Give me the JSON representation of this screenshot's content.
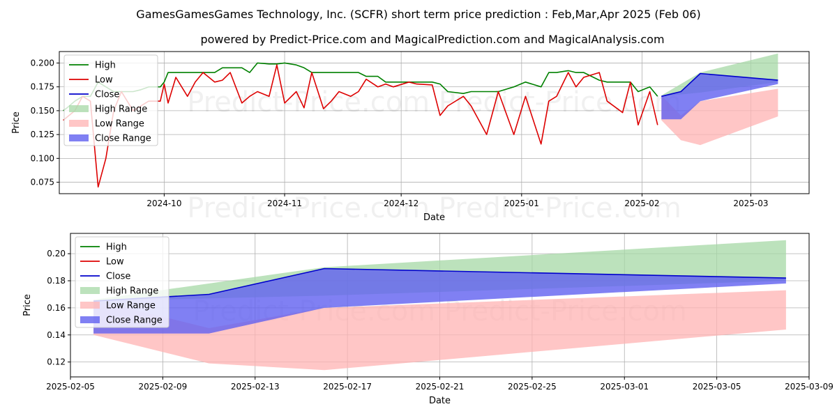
{
  "title": "GamesGamesGames Technology, Inc. (SCFR) short term price prediction : Feb,Mar,Apr 2025 (Feb 06)",
  "subtitle": "powered by Predict-Price.com and MagicalPrediction.com and MagicalAnalysis.com",
  "watermark": "Predict-Price.com",
  "colors": {
    "high": "#008000",
    "low": "#dd0000",
    "close": "#0000cc",
    "high_range": "#a6d8a6",
    "low_range": "#ffb3b3",
    "close_range": "#6060f0"
  },
  "chart_data": [
    {
      "type": "line",
      "xlabel": "Date",
      "ylabel": "Price",
      "x_axis": "date",
      "xlim": [
        "2024-09-04",
        "2025-03-16"
      ],
      "ylim": [
        0.063,
        0.212
      ],
      "x_ticks": [
        {
          "date": "2024-10-01",
          "label": "2024-10"
        },
        {
          "date": "2024-11-01",
          "label": "2024-11"
        },
        {
          "date": "2024-12-01",
          "label": "2024-12"
        },
        {
          "date": "2025-01-01",
          "label": "2025-01"
        },
        {
          "date": "2025-02-01",
          "label": "2025-02"
        },
        {
          "date": "2025-03-01",
          "label": "2025-03"
        }
      ],
      "y_ticks": [
        {
          "value": 0.075,
          "label": "0.075"
        },
        {
          "value": 0.1,
          "label": "0.100"
        },
        {
          "value": 0.125,
          "label": "0.125"
        },
        {
          "value": 0.15,
          "label": "0.150"
        },
        {
          "value": 0.175,
          "label": "0.175"
        },
        {
          "value": 0.2,
          "label": "0.200"
        }
      ],
      "grid": true,
      "legend": "upper-left",
      "legend_entries": [
        "High",
        "Low",
        "Close",
        "High Range",
        "Low Range",
        "Close Range"
      ],
      "series": [
        {
          "name": "High",
          "color": "#008000",
          "x": [
            "2024-09-05",
            "2024-09-06",
            "2024-09-08",
            "2024-09-10",
            "2024-09-12",
            "2024-09-14",
            "2024-09-16",
            "2024-09-18",
            "2024-09-20",
            "2024-09-23",
            "2024-09-25",
            "2024-09-27",
            "2024-09-30",
            "2024-10-01",
            "2024-10-02",
            "2024-10-04",
            "2024-10-07",
            "2024-10-09",
            "2024-10-11",
            "2024-10-14",
            "2024-10-16",
            "2024-10-18",
            "2024-10-21",
            "2024-10-23",
            "2024-10-25",
            "2024-10-28",
            "2024-10-30",
            "2024-11-01",
            "2024-11-04",
            "2024-11-06",
            "2024-11-08",
            "2024-11-11",
            "2024-11-13",
            "2024-11-15",
            "2024-11-18",
            "2024-11-20",
            "2024-11-22",
            "2024-11-25",
            "2024-11-27",
            "2024-11-29",
            "2024-12-03",
            "2024-12-05",
            "2024-12-09",
            "2024-12-11",
            "2024-12-13",
            "2024-12-17",
            "2024-12-19",
            "2024-12-23",
            "2024-12-26",
            "2024-12-30",
            "2025-01-02",
            "2025-01-06",
            "2025-01-08",
            "2025-01-10",
            "2025-01-13",
            "2025-01-15",
            "2025-01-17",
            "2025-01-21",
            "2025-01-23",
            "2025-01-27",
            "2025-01-29",
            "2025-01-31",
            "2025-02-03",
            "2025-02-05"
          ],
          "values": [
            0.15,
            0.153,
            0.16,
            0.165,
            0.165,
            0.18,
            0.175,
            0.17,
            0.17,
            0.17,
            0.172,
            0.175,
            0.175,
            0.18,
            0.19,
            0.19,
            0.19,
            0.19,
            0.19,
            0.19,
            0.195,
            0.195,
            0.195,
            0.19,
            0.2,
            0.199,
            0.199,
            0.2,
            0.198,
            0.195,
            0.19,
            0.19,
            0.19,
            0.19,
            0.19,
            0.19,
            0.186,
            0.186,
            0.18,
            0.18,
            0.18,
            0.18,
            0.18,
            0.178,
            0.17,
            0.168,
            0.17,
            0.17,
            0.17,
            0.175,
            0.18,
            0.175,
            0.19,
            0.19,
            0.192,
            0.19,
            0.19,
            0.182,
            0.18,
            0.18,
            0.18,
            0.17,
            0.175,
            0.165
          ]
        },
        {
          "name": "Low",
          "color": "#dd0000",
          "x": [
            "2024-09-05",
            "2024-09-08",
            "2024-09-10",
            "2024-09-12",
            "2024-09-14",
            "2024-09-16",
            "2024-09-18",
            "2024-09-20",
            "2024-09-23",
            "2024-09-25",
            "2024-09-27",
            "2024-09-30",
            "2024-10-01",
            "2024-10-02",
            "2024-10-04",
            "2024-10-07",
            "2024-10-09",
            "2024-10-11",
            "2024-10-14",
            "2024-10-16",
            "2024-10-18",
            "2024-10-21",
            "2024-10-23",
            "2024-10-25",
            "2024-10-28",
            "2024-10-30",
            "2024-11-01",
            "2024-11-04",
            "2024-11-06",
            "2024-11-08",
            "2024-11-11",
            "2024-11-13",
            "2024-11-15",
            "2024-11-18",
            "2024-11-20",
            "2024-11-22",
            "2024-11-25",
            "2024-11-27",
            "2024-11-29",
            "2024-12-03",
            "2024-12-05",
            "2024-12-09",
            "2024-12-11",
            "2024-12-13",
            "2024-12-17",
            "2024-12-19",
            "2024-12-23",
            "2024-12-26",
            "2024-12-30",
            "2025-01-02",
            "2025-01-06",
            "2025-01-08",
            "2025-01-10",
            "2025-01-13",
            "2025-01-15",
            "2025-01-17",
            "2025-01-21",
            "2025-01-23",
            "2025-01-27",
            "2025-01-29",
            "2025-01-31",
            "2025-02-03",
            "2025-02-05"
          ],
          "values": [
            0.14,
            0.15,
            0.165,
            0.16,
            0.07,
            0.1,
            0.15,
            0.17,
            0.15,
            0.155,
            0.16,
            0.16,
            0.178,
            0.158,
            0.185,
            0.165,
            0.18,
            0.19,
            0.18,
            0.182,
            0.19,
            0.158,
            0.165,
            0.17,
            0.165,
            0.198,
            0.158,
            0.17,
            0.153,
            0.19,
            0.152,
            0.16,
            0.17,
            0.165,
            0.17,
            0.183,
            0.175,
            0.178,
            0.175,
            0.18,
            0.178,
            0.177,
            0.145,
            0.155,
            0.165,
            0.155,
            0.125,
            0.17,
            0.125,
            0.165,
            0.115,
            0.16,
            0.165,
            0.19,
            0.175,
            0.185,
            0.19,
            0.16,
            0.148,
            0.18,
            0.135,
            0.17,
            0.135
          ]
        },
        {
          "name": "Close",
          "color": "#0000cc",
          "x": [
            "2025-02-06",
            "2025-02-09",
            "2025-02-11",
            "2025-02-16",
            "2025-03-08"
          ],
          "values": [
            0.165,
            0.168,
            0.17,
            0.189,
            0.182
          ]
        }
      ],
      "ranges": [
        {
          "name": "High Range",
          "x": [
            "2025-02-06",
            "2025-02-16",
            "2025-03-08"
          ],
          "upper": [
            0.166,
            0.19,
            0.21
          ],
          "lower": [
            0.165,
            0.169,
            0.18
          ]
        },
        {
          "name": "Low Range",
          "x": [
            "2025-02-06",
            "2025-02-11",
            "2025-02-16",
            "2025-03-08"
          ],
          "upper": [
            0.166,
            0.145,
            0.16,
            0.173
          ],
          "lower": [
            0.14,
            0.119,
            0.114,
            0.144
          ]
        },
        {
          "name": "Close Range",
          "x": [
            "2025-02-06",
            "2025-02-11",
            "2025-02-16",
            "2025-03-08"
          ],
          "upper": [
            0.165,
            0.17,
            0.189,
            0.182
          ],
          "lower": [
            0.141,
            0.141,
            0.16,
            0.178
          ]
        }
      ]
    },
    {
      "type": "line",
      "xlabel": "Date",
      "ylabel": "Price",
      "x_axis": "date",
      "xlim": [
        "2025-02-05",
        "2025-03-09"
      ],
      "ylim": [
        0.109,
        0.215
      ],
      "x_ticks": [
        {
          "date": "2025-02-05",
          "label": "2025-02-05"
        },
        {
          "date": "2025-02-09",
          "label": "2025-02-09"
        },
        {
          "date": "2025-02-13",
          "label": "2025-02-13"
        },
        {
          "date": "2025-02-17",
          "label": "2025-02-17"
        },
        {
          "date": "2025-02-21",
          "label": "2025-02-21"
        },
        {
          "date": "2025-02-25",
          "label": "2025-02-25"
        },
        {
          "date": "2025-03-01",
          "label": "2025-03-01"
        },
        {
          "date": "2025-03-05",
          "label": "2025-03-05"
        },
        {
          "date": "2025-03-09",
          "label": "2025-03-09"
        }
      ],
      "y_ticks": [
        {
          "value": 0.12,
          "label": "0.12"
        },
        {
          "value": 0.14,
          "label": "0.14"
        },
        {
          "value": 0.16,
          "label": "0.16"
        },
        {
          "value": 0.18,
          "label": "0.18"
        },
        {
          "value": 0.2,
          "label": "0.20"
        }
      ],
      "grid": true,
      "legend": "upper-left",
      "legend_entries": [
        "High",
        "Low",
        "Close",
        "High Range",
        "Low Range",
        "Close Range"
      ],
      "series": [
        {
          "name": "Close",
          "color": "#0000cc",
          "x": [
            "2025-02-06",
            "2025-02-09",
            "2025-02-11",
            "2025-02-16",
            "2025-03-08"
          ],
          "values": [
            0.165,
            0.168,
            0.17,
            0.189,
            0.182
          ]
        }
      ],
      "ranges": [
        {
          "name": "High Range",
          "x": [
            "2025-02-06",
            "2025-02-16",
            "2025-03-08"
          ],
          "upper": [
            0.166,
            0.19,
            0.21
          ],
          "lower": [
            0.165,
            0.169,
            0.18
          ]
        },
        {
          "name": "Low Range",
          "x": [
            "2025-02-06",
            "2025-02-11",
            "2025-02-16",
            "2025-03-08"
          ],
          "upper": [
            0.166,
            0.145,
            0.16,
            0.173
          ],
          "lower": [
            0.14,
            0.119,
            0.114,
            0.144
          ]
        },
        {
          "name": "Close Range",
          "x": [
            "2025-02-06",
            "2025-02-11",
            "2025-02-16",
            "2025-03-08"
          ],
          "upper": [
            0.165,
            0.17,
            0.189,
            0.182
          ],
          "lower": [
            0.141,
            0.141,
            0.16,
            0.178
          ]
        }
      ]
    }
  ]
}
